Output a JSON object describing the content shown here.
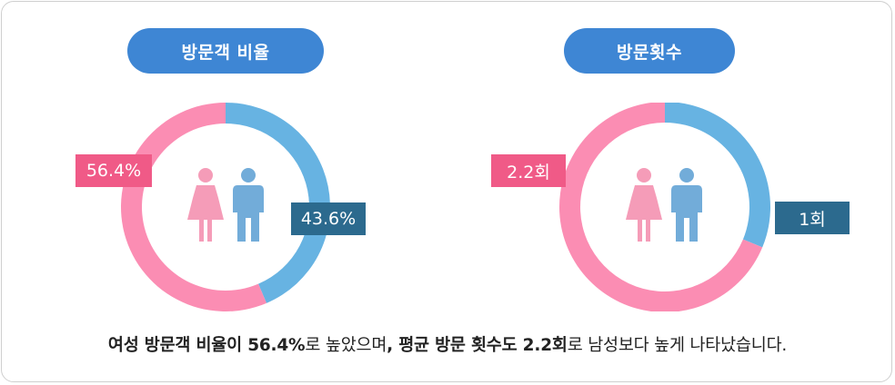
{
  "colors": {
    "female": "#fb8db3",
    "male": "#67b3e2",
    "pill": "#3e86d4",
    "female_label": "#f05a87",
    "male_label": "#2c6a8e",
    "female_icon": "#f59cb8",
    "male_icon": "#72acd9"
  },
  "chart_data": [
    {
      "type": "pie",
      "title": "방문객 비율",
      "slices": [
        {
          "label": "56.4%",
          "value": 56.4,
          "color": "#fb8db3"
        },
        {
          "label": "43.6%",
          "value": 43.6,
          "color": "#67b3e2"
        }
      ]
    },
    {
      "type": "pie",
      "title": "방문횟수",
      "slices": [
        {
          "label": "2.2회",
          "value": 2.2,
          "color": "#fb8db3"
        },
        {
          "label": "1회",
          "value": 1,
          "color": "#67b3e2"
        }
      ]
    }
  ],
  "caption": {
    "part1": "여성 방문객 비율이 56.4%",
    "part2": "로 높았으며",
    "part3": ", 평균 방문 횟수도 2.2회",
    "part4": "로 남성보다 높게 나타났습니다."
  }
}
